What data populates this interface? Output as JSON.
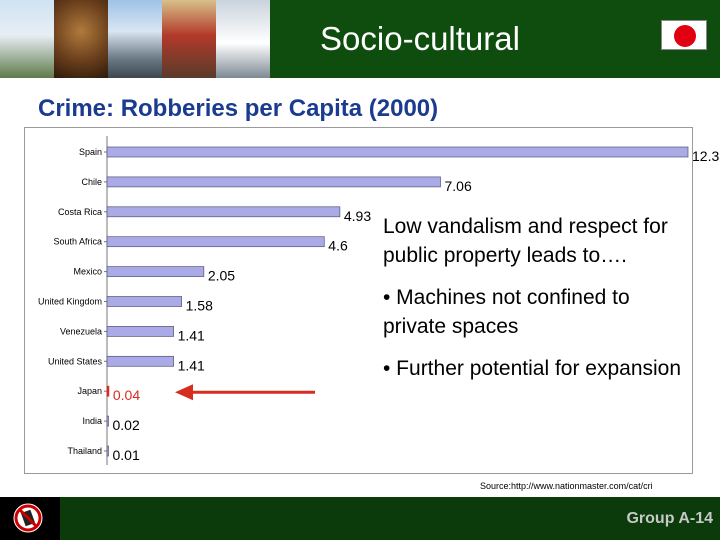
{
  "header": {
    "title": "Socio-cultural"
  },
  "slide": {
    "title": "Crime: Robberies per Capita (2000)"
  },
  "textbox": {
    "intro": "Low vandalism and respect for public property leads to….",
    "bullets": [
      "• Machines not confined to private spaces",
      "• Further potential for expansion"
    ]
  },
  "source": "Source:http://www.nationmaster.com/cat/cri",
  "footer": {
    "label": "Group A-14",
    "icon": "no-vandalism-icon"
  },
  "colors": {
    "bar_fill": "#aaaae6",
    "bar_stroke": "#555577",
    "highlight": "#d62d20",
    "header_green": "#0f4d0f"
  },
  "chart_data": {
    "type": "bar",
    "orientation": "horizontal",
    "categories": [
      "Spain",
      "Chile",
      "Costa Rica",
      "South Africa",
      "Mexico",
      "United Kingdom",
      "Venezuela",
      "United States",
      "Japan",
      "India",
      "Thailand"
    ],
    "values": [
      12.3,
      7.06,
      4.93,
      4.6,
      2.05,
      1.58,
      1.41,
      1.41,
      0.04,
      0.02,
      0.01
    ],
    "value_labels": [
      "12.3",
      "7.06",
      "4.93",
      "4.6",
      "2.05",
      "1.58",
      "1.41",
      "1.41",
      "0.04",
      "0.02",
      "0.01"
    ],
    "highlight_category": "Japan",
    "xlim": [
      0,
      12.3
    ],
    "grid": false
  }
}
